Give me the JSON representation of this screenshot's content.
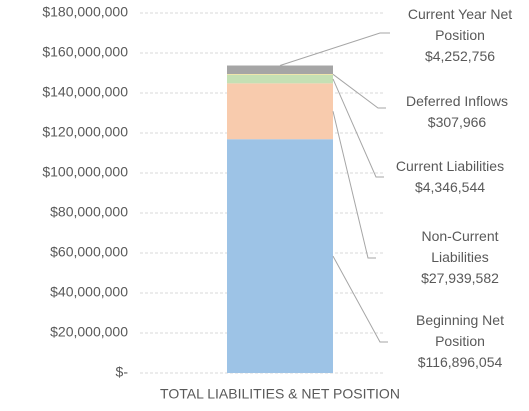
{
  "chart_data": {
    "type": "stacked_bar",
    "categories": [
      "TOTAL LIABILITIES & NET POSITION"
    ],
    "series": [
      {
        "name": "Beginning Net Position",
        "color": "#9dc3e6",
        "values": [
          116896054
        ],
        "value_labels": [
          "$116,896,054"
        ]
      },
      {
        "name": "Non-Current Liabilities",
        "color": "#f8cbad",
        "values": [
          27939582
        ],
        "value_labels": [
          "$27,939,582"
        ]
      },
      {
        "name": "Current Liabilities",
        "color": "#c5e0b4",
        "values": [
          4346544
        ],
        "value_labels": [
          "$4,346,544"
        ]
      },
      {
        "name": "Deferred Inflows",
        "color": "#ffe699",
        "values": [
          307966
        ],
        "value_labels": [
          "$307,966"
        ]
      },
      {
        "name": "Current Year Net Position",
        "color": "#a5a5a5",
        "values": [
          4252756
        ],
        "value_labels": [
          "$4,252,756"
        ]
      }
    ],
    "ylim": [
      0,
      180000000
    ],
    "yticks": [
      {
        "value": 0,
        "label": "$-"
      },
      {
        "value": 20000000,
        "label": "$20,000,000"
      },
      {
        "value": 40000000,
        "label": "$40,000,000"
      },
      {
        "value": 60000000,
        "label": "$60,000,000"
      },
      {
        "value": 80000000,
        "label": "$80,000,000"
      },
      {
        "value": 100000000,
        "label": "$100,000,000"
      },
      {
        "value": 120000000,
        "label": "$120,000,000"
      },
      {
        "value": 140000000,
        "label": "$140,000,000"
      },
      {
        "value": 160000000,
        "label": "$160,000,000"
      },
      {
        "value": 180000000,
        "label": "$180,000,000"
      }
    ],
    "grid": true
  }
}
